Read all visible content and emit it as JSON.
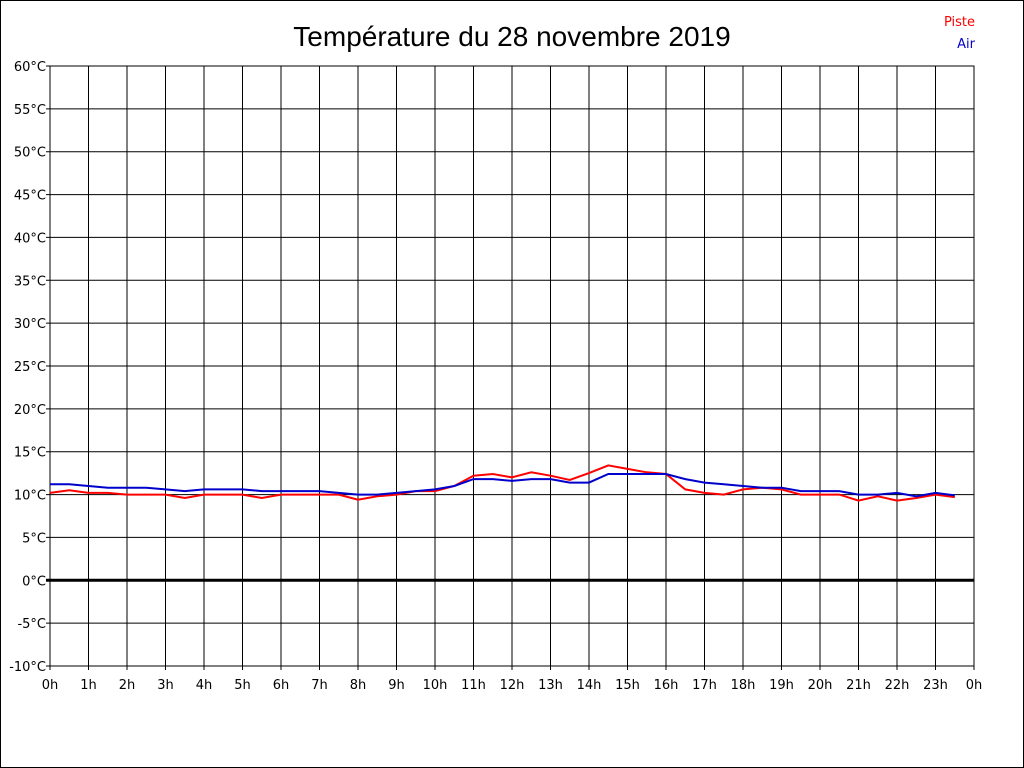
{
  "chart_data": {
    "type": "line",
    "title": "Température du 28 novembre 2019",
    "xlabel": "",
    "ylabel": "",
    "ylim": [
      -10,
      60
    ],
    "grid": true,
    "legend_position": "top-right",
    "x_tick_labels": [
      "0h",
      "1h",
      "2h",
      "3h",
      "4h",
      "5h",
      "6h",
      "7h",
      "8h",
      "9h",
      "10h",
      "11h",
      "12h",
      "13h",
      "14h",
      "15h",
      "16h",
      "17h",
      "18h",
      "19h",
      "20h",
      "21h",
      "22h",
      "23h",
      "0h"
    ],
    "y_tick_labels": [
      "60°C",
      "55°C",
      "50°C",
      "45°C",
      "40°C",
      "35°C",
      "30°C",
      "25°C",
      "20°C",
      "15°C",
      "10°C",
      "5°C",
      "0°C",
      "-5°C",
      "-10°C"
    ],
    "y_tick_values": [
      60,
      55,
      50,
      45,
      40,
      35,
      30,
      25,
      20,
      15,
      10,
      5,
      0,
      -5,
      -10
    ],
    "x": [
      0,
      0.5,
      1,
      1.5,
      2,
      2.5,
      3,
      3.5,
      4,
      4.5,
      5,
      5.5,
      6,
      6.5,
      7,
      7.5,
      8,
      8.5,
      9,
      9.5,
      10,
      10.5,
      11,
      11.5,
      12,
      12.5,
      13,
      13.5,
      14,
      14.5,
      15,
      15.5,
      16,
      16.5,
      17,
      17.5,
      18,
      18.5,
      19,
      19.5,
      20,
      20.5,
      21,
      21.5,
      22,
      22.5,
      23,
      23.5
    ],
    "series": [
      {
        "name": "Piste",
        "color": "#ff0000",
        "values": [
          10.2,
          10.5,
          10.2,
          10.2,
          10.0,
          10.0,
          10.0,
          9.6,
          10.0,
          10.0,
          10.0,
          9.6,
          10.0,
          10.0,
          10.0,
          10.0,
          9.4,
          9.8,
          10.0,
          10.4,
          10.4,
          11.0,
          12.2,
          12.4,
          12.0,
          12.6,
          12.2,
          11.7,
          12.5,
          13.4,
          13.0,
          12.6,
          12.4,
          10.6,
          10.2,
          10.0,
          10.6,
          10.8,
          10.6,
          10.0,
          10.0,
          10.0,
          9.3,
          9.8,
          9.3,
          9.6,
          10.0,
          9.7
        ]
      },
      {
        "name": "Air",
        "color": "#0000cc",
        "values": [
          11.2,
          11.2,
          11.0,
          10.8,
          10.8,
          10.8,
          10.6,
          10.4,
          10.6,
          10.6,
          10.6,
          10.4,
          10.4,
          10.4,
          10.4,
          10.2,
          10.0,
          10.0,
          10.2,
          10.4,
          10.6,
          11.0,
          11.8,
          11.8,
          11.6,
          11.8,
          11.8,
          11.4,
          11.4,
          12.4,
          12.4,
          12.4,
          12.4,
          11.8,
          11.4,
          11.2,
          11.0,
          10.8,
          10.8,
          10.4,
          10.4,
          10.4,
          10.0,
          10.0,
          10.2,
          9.8,
          10.2,
          9.9
        ]
      }
    ]
  }
}
